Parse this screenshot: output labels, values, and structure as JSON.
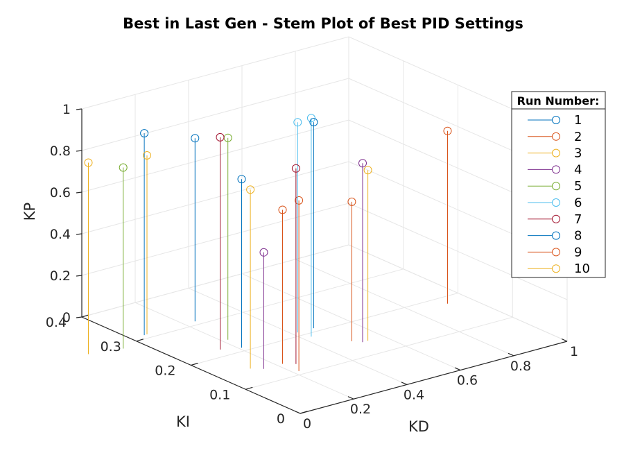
{
  "chart_data": {
    "type": "stem3",
    "title": "Best in Last Gen - Stem Plot of Best PID Settings",
    "xlabel": "KD",
    "ylabel": "KI",
    "zlabel": "KP",
    "xlim": [
      0,
      1
    ],
    "ylim": [
      0,
      0.4
    ],
    "zlim": [
      0,
      1
    ],
    "xticks": [
      "0",
      "0.2",
      "0.4",
      "0.6",
      "0.8",
      "1"
    ],
    "yticks": [
      "0",
      "0.1",
      "0.2",
      "0.3",
      "0.4"
    ],
    "zticks": [
      "0",
      "0.2",
      "0.4",
      "0.6",
      "0.8",
      "1"
    ],
    "grid": true,
    "legend": {
      "title": "Run Number:",
      "position": "right"
    },
    "series": [
      {
        "name": "1",
        "color": "#0072BD",
        "points": [
          {
            "x": 0.24,
            "y": 0.31,
            "z": 0.88
          },
          {
            "x": 0.05,
            "y": 0.31,
            "z": 0.97
          }
        ]
      },
      {
        "name": "2",
        "color": "#D95319",
        "points": [
          {
            "x": 0.22,
            "y": 0.11,
            "z": 0.82
          },
          {
            "x": 0.22,
            "y": 0.14,
            "z": 0.74
          }
        ]
      },
      {
        "name": "3",
        "color": "#EDB120",
        "points": [
          {
            "x": 0.12,
            "y": 0.15,
            "z": 0.86
          },
          {
            "x": 0.06,
            "y": 0.31,
            "z": 0.86
          }
        ]
      },
      {
        "name": "4",
        "color": "#7E2F8E",
        "points": [
          {
            "x": 0.52,
            "y": 0.14,
            "z": 0.86
          },
          {
            "x": 0.15,
            "y": 0.14,
            "z": 0.56
          }
        ]
      },
      {
        "name": "5",
        "color": "#77AC30",
        "points": [
          {
            "x": 0.22,
            "y": 0.24,
            "z": 0.97
          },
          {
            "x": -0.07,
            "y": 0.29,
            "z": 0.87
          }
        ]
      },
      {
        "name": "6",
        "color": "#4DBEEE",
        "points": [
          {
            "x": 0.43,
            "y": 0.19,
            "z": 1.05
          },
          {
            "x": 0.42,
            "y": 0.21,
            "z": 1.01
          }
        ]
      },
      {
        "name": "7",
        "color": "#A2142F",
        "points": [
          {
            "x": 0.25,
            "y": 0.13,
            "z": 0.94
          },
          {
            "x": 0.15,
            "y": 0.22,
            "z": 1.02
          }
        ]
      },
      {
        "name": "8",
        "color": "#0072BD",
        "points": [
          {
            "x": 0.48,
            "y": 0.21,
            "z": 0.99
          },
          {
            "x": 0.21,
            "y": 0.21,
            "z": 0.81
          }
        ]
      },
      {
        "name": "9",
        "color": "#D95319",
        "points": [
          {
            "x": 0.92,
            "y": 0.18,
            "z": 0.83
          },
          {
            "x": 0.5,
            "y": 0.15,
            "z": 0.67
          }
        ]
      },
      {
        "name": "10",
        "color": "#EDB120",
        "points": [
          {
            "x": -0.18,
            "y": 0.3,
            "z": 0.92
          },
          {
            "x": 0.54,
            "y": 0.14,
            "z": 0.82
          }
        ]
      }
    ]
  }
}
